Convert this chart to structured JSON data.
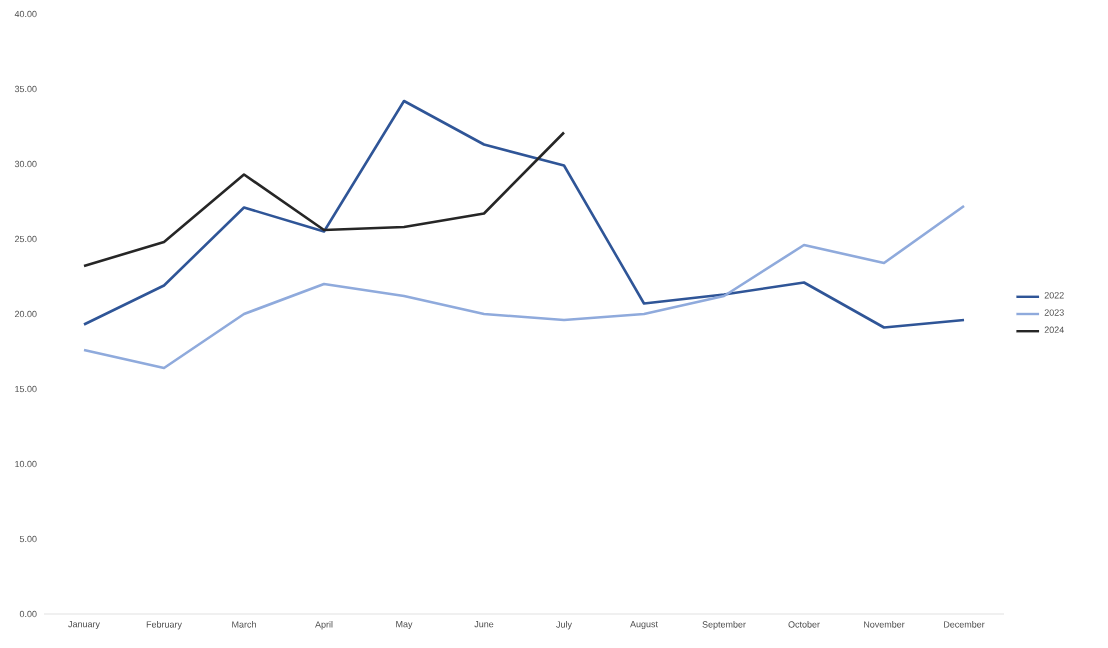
{
  "chart_data": {
    "type": "line",
    "categories": [
      "January",
      "February",
      "March",
      "April",
      "May",
      "June",
      "July",
      "August",
      "September",
      "October",
      "November",
      "December"
    ],
    "series": [
      {
        "name": "2022",
        "color": "#2f5597",
        "values": [
          19.3,
          21.9,
          27.1,
          25.5,
          34.2,
          31.3,
          29.9,
          20.7,
          21.3,
          22.1,
          19.1,
          19.6
        ]
      },
      {
        "name": "2023",
        "color": "#8faadc",
        "values": [
          17.6,
          16.4,
          20.0,
          22.0,
          21.2,
          20.0,
          19.6,
          20.0,
          21.2,
          24.6,
          23.4,
          27.2
        ]
      },
      {
        "name": "2024",
        "color": "#262626",
        "values": [
          23.2,
          24.8,
          29.3,
          25.6,
          25.8,
          26.7,
          32.1,
          null,
          null,
          null,
          null,
          null
        ]
      }
    ],
    "ylim": [
      0,
      40
    ],
    "yticks": [
      {
        "value": 0,
        "label": "0.00"
      },
      {
        "value": 5,
        "label": "5.00"
      },
      {
        "value": 10,
        "label": "10.00"
      },
      {
        "value": 15,
        "label": "15.00"
      },
      {
        "value": 20,
        "label": "20.00"
      },
      {
        "value": 25,
        "label": "25.00"
      },
      {
        "value": 30,
        "label": "30.00"
      },
      {
        "value": 35,
        "label": "35.00"
      },
      {
        "value": 40,
        "label": "40.00"
      }
    ],
    "grid": false,
    "legend": "right",
    "marker": "none",
    "line_style": "solid"
  }
}
